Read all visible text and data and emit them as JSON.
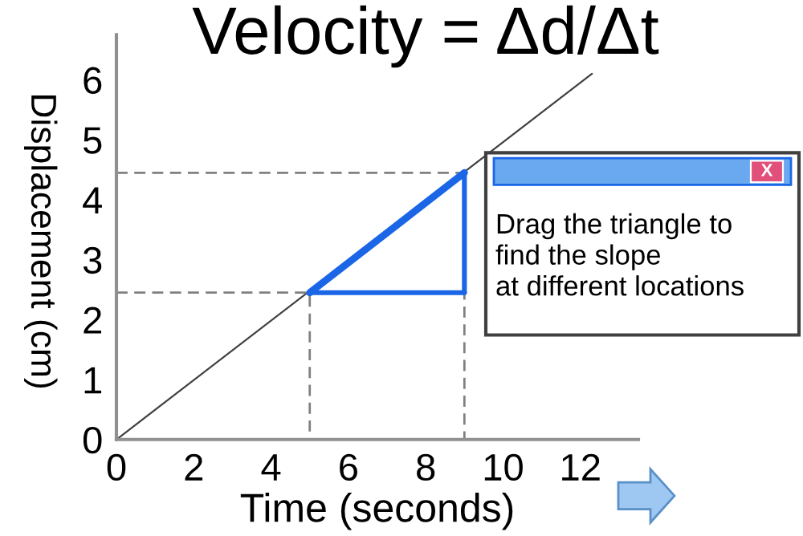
{
  "chart_data": {
    "type": "line",
    "title": "Velocity = Δd/Δt",
    "xlabel": "Time (seconds)",
    "ylabel": "Displacement (cm)",
    "xlim": [
      0,
      13.5
    ],
    "ylim": [
      0,
      6.75
    ],
    "xticks": [
      0,
      2,
      4,
      6,
      8,
      10,
      12
    ],
    "yticks": [
      0,
      1,
      2,
      3,
      4,
      5,
      6
    ],
    "grid": false,
    "legend": false,
    "marker": "none",
    "series": [
      {
        "color": "#404040",
        "x": [
          0,
          12.3
        ],
        "values": [
          0,
          6.1
        ],
        "line_style": "solid"
      },
      {
        "color": "#808080",
        "x": [
          0,
          5,
          5
        ],
        "values": [
          2.45,
          2.45,
          0
        ],
        "line_style": "dashed"
      },
      {
        "color": "#808080",
        "x": [
          0,
          9,
          9
        ],
        "values": [
          4.45,
          4.45,
          0
        ],
        "line_style": "dashed"
      },
      {
        "color": "#1a66e6",
        "x": [
          5,
          9
        ],
        "values": [
          2.45,
          4.45
        ],
        "line_style": "solid"
      },
      {
        "color": "#1a66e6",
        "x": [
          5,
          9
        ],
        "values": [
          2.45,
          2.45
        ],
        "line_style": "solid"
      },
      {
        "color": "#1a66e6",
        "x": [
          9,
          9
        ],
        "values": [
          2.45,
          4.45
        ],
        "line_style": "solid"
      }
    ],
    "annotations": [
      "Drag the triangle to\nfind the slope\nat different locations",
      "X"
    ]
  }
}
